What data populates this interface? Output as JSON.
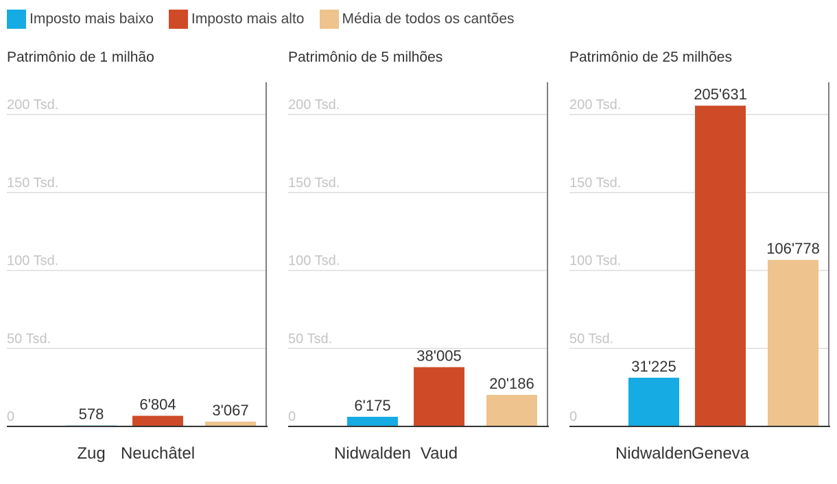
{
  "legend": [
    {
      "label": "Imposto mais baixo",
      "color": "#16abe2"
    },
    {
      "label": "Imposto mais alto",
      "color": "#cf4b28"
    },
    {
      "label": "Média de todos os cantões",
      "color": "#eec38d"
    }
  ],
  "chart_data": [
    {
      "type": "bar",
      "title": "Patrimônio de 1 milhão",
      "categories": [
        "Imposto mais baixo",
        "Imposto mais alto",
        "Média de todos os cantões"
      ],
      "category_labels": [
        "Zug",
        "Neuchâtel",
        ""
      ],
      "values": [
        578,
        6804,
        3067
      ],
      "value_labels": [
        "578",
        "6'804",
        "3'067"
      ],
      "colors": [
        "#16abe2",
        "#cf4b28",
        "#eec38d"
      ],
      "ylim": [
        0,
        200000
      ],
      "yticks": [
        0,
        50000,
        100000,
        150000,
        200000
      ],
      "ytick_labels": [
        "0",
        "50 Tsd.",
        "100 Tsd.",
        "150 Tsd.",
        "200 Tsd."
      ],
      "grid": true
    },
    {
      "type": "bar",
      "title": "Patrimônio de 5 milhões",
      "categories": [
        "Imposto mais baixo",
        "Imposto mais alto",
        "Média de todos os cantões"
      ],
      "category_labels": [
        "Nidwalden",
        "Vaud",
        ""
      ],
      "values": [
        6175,
        38005,
        20186
      ],
      "value_labels": [
        "6'175",
        "38'005",
        "20'186"
      ],
      "colors": [
        "#16abe2",
        "#cf4b28",
        "#eec38d"
      ],
      "ylim": [
        0,
        200000
      ],
      "yticks": [
        0,
        50000,
        100000,
        150000,
        200000
      ],
      "ytick_labels": [
        "0",
        "50 Tsd.",
        "100 Tsd.",
        "150 Tsd.",
        "200 Tsd."
      ],
      "grid": true
    },
    {
      "type": "bar",
      "title": "Patrimônio de 25 milhões",
      "categories": [
        "Imposto mais baixo",
        "Imposto mais alto",
        "Média de todos os cantões"
      ],
      "category_labels": [
        "Nidwalden",
        "Geneva",
        ""
      ],
      "values": [
        31225,
        205631,
        106778
      ],
      "value_labels": [
        "31'225",
        "205'631",
        "106'778"
      ],
      "colors": [
        "#16abe2",
        "#cf4b28",
        "#eec38d"
      ],
      "ylim": [
        0,
        200000
      ],
      "yticks": [
        0,
        50000,
        100000,
        150000,
        200000
      ],
      "ytick_labels": [
        "0",
        "50 Tsd.",
        "100 Tsd.",
        "150 Tsd.",
        "200 Tsd."
      ],
      "grid": true
    }
  ]
}
